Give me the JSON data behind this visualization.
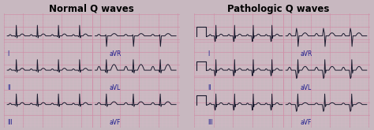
{
  "title_left": "Normal Q waves",
  "title_right": "Pathologic Q waves",
  "title_fontsize": 8.5,
  "title_fontweight": "bold",
  "bg_color": "#f0d8e4",
  "grid_minor_color": "#e0b8cc",
  "grid_major_color": "#d090a8",
  "ecg_color": "#1a1a2e",
  "label_color": "#1a1a8c",
  "label_fontsize": 5.5,
  "outer_bg": "#c8b8c0",
  "left_labels": [
    "I",
    "II",
    "III"
  ],
  "avr_labels": [
    "aVR",
    "aVL",
    "aVF"
  ],
  "right_labels": [
    "I",
    "II",
    "III"
  ],
  "right_avr_labels": [
    "aVR",
    "aVL",
    "aVF"
  ]
}
